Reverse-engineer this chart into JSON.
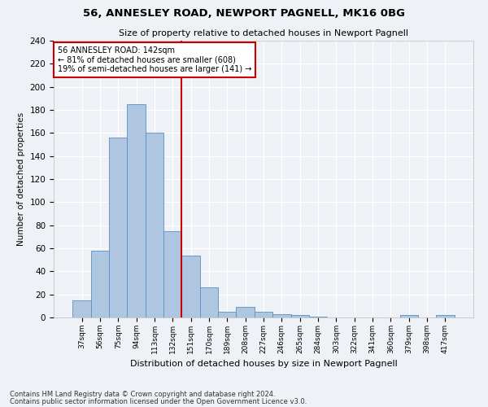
{
  "title1": "56, ANNESLEY ROAD, NEWPORT PAGNELL, MK16 0BG",
  "title2": "Size of property relative to detached houses in Newport Pagnell",
  "xlabel": "Distribution of detached houses by size in Newport Pagnell",
  "ylabel": "Number of detached properties",
  "bins": [
    "37sqm",
    "56sqm",
    "75sqm",
    "94sqm",
    "113sqm",
    "132sqm",
    "151sqm",
    "170sqm",
    "189sqm",
    "208sqm",
    "227sqm",
    "246sqm",
    "265sqm",
    "284sqm",
    "303sqm",
    "322sqm",
    "341sqm",
    "360sqm",
    "379sqm",
    "398sqm",
    "417sqm"
  ],
  "values": [
    15,
    58,
    156,
    185,
    160,
    75,
    54,
    26,
    5,
    9,
    5,
    3,
    2,
    1,
    0,
    0,
    0,
    0,
    2,
    0,
    2
  ],
  "bar_color": "#aec6e0",
  "bar_edge_color": "#5a8fc0",
  "vline_color": "#cc0000",
  "annotation_text": "56 ANNESLEY ROAD: 142sqm\n← 81% of detached houses are smaller (608)\n19% of semi-detached houses are larger (141) →",
  "annotation_box_color": "#cc0000",
  "ylim": [
    0,
    240
  ],
  "yticks": [
    0,
    20,
    40,
    60,
    80,
    100,
    120,
    140,
    160,
    180,
    200,
    220,
    240
  ],
  "footnote1": "Contains HM Land Registry data © Crown copyright and database right 2024.",
  "footnote2": "Contains public sector information licensed under the Open Government Licence v3.0.",
  "bg_color": "#eef2f7",
  "grid_color": "#ffffff"
}
